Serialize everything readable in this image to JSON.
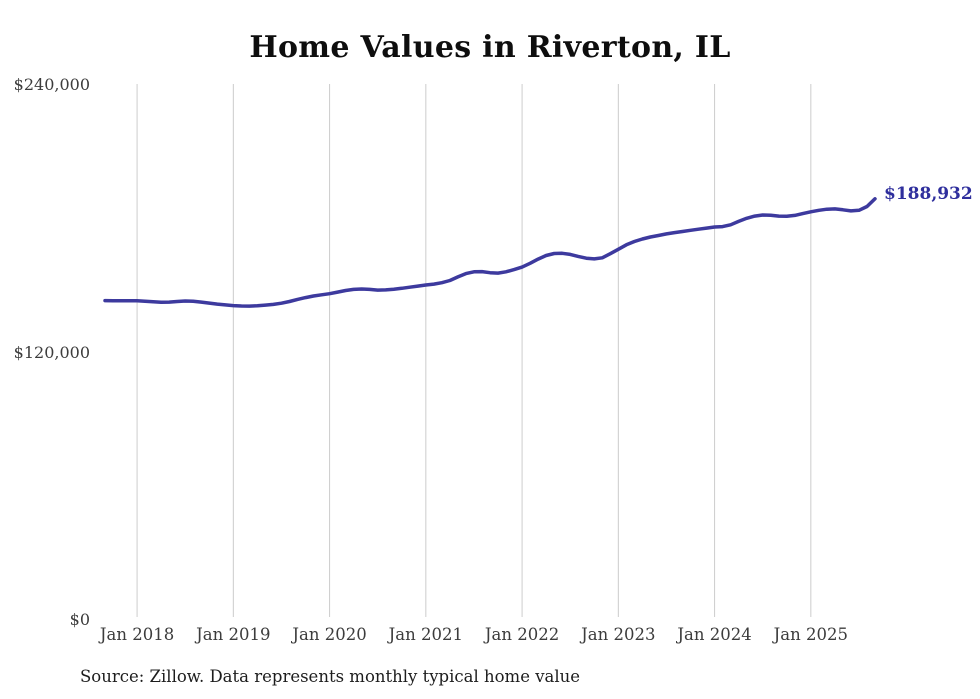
{
  "chart_data": {
    "type": "line",
    "title": "Home Values in Riverton, IL",
    "xlabel": "",
    "ylabel": "",
    "ylim": [
      0,
      240000
    ],
    "grid": "vertical-only",
    "legend": "none",
    "end_label": "$188,932",
    "latest_value": 188932,
    "source": "Source: Zillow. Data represents monthly typical home value",
    "colors": {
      "line": "#3d3a9e",
      "end_label": "#2f2f9d",
      "grid": "#cccccc",
      "axis_text": "#3c3c3c",
      "title_text": "#0e0e0e",
      "background": "#ffffff"
    },
    "y_ticks": [
      {
        "label": "$0",
        "value": 0
      },
      {
        "label": "$120,000",
        "value": 120000
      },
      {
        "label": "$240,000",
        "value": 240000
      }
    ],
    "x_ticks": [
      {
        "label": "Jan 2018",
        "month": "2018-01"
      },
      {
        "label": "Jan 2019",
        "month": "2019-01"
      },
      {
        "label": "Jan 2020",
        "month": "2020-01"
      },
      {
        "label": "Jan 2021",
        "month": "2021-01"
      },
      {
        "label": "Jan 2022",
        "month": "2022-01"
      },
      {
        "label": "Jan 2023",
        "month": "2023-01"
      },
      {
        "label": "Jan 2024",
        "month": "2024-01"
      },
      {
        "label": "Jan 2025",
        "month": "2025-01"
      }
    ],
    "x": [
      "2017-09",
      "2017-10",
      "2017-11",
      "2017-12",
      "2018-01",
      "2018-02",
      "2018-03",
      "2018-04",
      "2018-05",
      "2018-06",
      "2018-07",
      "2018-08",
      "2018-09",
      "2018-10",
      "2018-11",
      "2018-12",
      "2019-01",
      "2019-02",
      "2019-03",
      "2019-04",
      "2019-05",
      "2019-06",
      "2019-07",
      "2019-08",
      "2019-09",
      "2019-10",
      "2019-11",
      "2019-12",
      "2020-01",
      "2020-02",
      "2020-03",
      "2020-04",
      "2020-05",
      "2020-06",
      "2020-07",
      "2020-08",
      "2020-09",
      "2020-10",
      "2020-11",
      "2020-12",
      "2021-01",
      "2021-02",
      "2021-03",
      "2021-04",
      "2021-05",
      "2021-06",
      "2021-07",
      "2021-08",
      "2021-09",
      "2021-10",
      "2021-11",
      "2021-12",
      "2022-01",
      "2022-02",
      "2022-03",
      "2022-04",
      "2022-05",
      "2022-06",
      "2022-07",
      "2022-08",
      "2022-09",
      "2022-10",
      "2022-11",
      "2022-12",
      "2023-01",
      "2023-02",
      "2023-03",
      "2023-04",
      "2023-05",
      "2023-06",
      "2023-07",
      "2023-08",
      "2023-09",
      "2023-10",
      "2023-11",
      "2023-12",
      "2024-01",
      "2024-02",
      "2024-03",
      "2024-04",
      "2024-05",
      "2024-06",
      "2024-07",
      "2024-08",
      "2024-09",
      "2024-10",
      "2024-11",
      "2024-12",
      "2025-01",
      "2025-02",
      "2025-03",
      "2025-04",
      "2025-05",
      "2025-06",
      "2025-07",
      "2025-08",
      "2025-09"
    ],
    "series": [
      {
        "name": "Monthly typical home value",
        "values": [
          143300,
          143250,
          143200,
          143200,
          143200,
          143000,
          142750,
          142500,
          142600,
          142900,
          143100,
          143000,
          142600,
          142150,
          141700,
          141350,
          141050,
          140850,
          140800,
          140950,
          141250,
          141600,
          142100,
          142900,
          143800,
          144650,
          145350,
          145900,
          146400,
          147100,
          147800,
          148300,
          148500,
          148300,
          148000,
          148100,
          148400,
          148800,
          149300,
          149800,
          150300,
          150700,
          151300,
          152300,
          153900,
          155400,
          156200,
          156300,
          155800,
          155600,
          156200,
          157200,
          158300,
          160000,
          161900,
          163500,
          164400,
          164500,
          164000,
          163100,
          162300,
          162000,
          162500,
          164300,
          166300,
          168300,
          169800,
          170900,
          171800,
          172500,
          173200,
          173800,
          174300,
          174800,
          175300,
          175800,
          176300,
          176500,
          177300,
          178800,
          180200,
          181200,
          181700,
          181600,
          181200,
          181100,
          181500,
          182300,
          183100,
          183800,
          184300,
          184400,
          184000,
          183500,
          183800,
          185500,
          188932
        ]
      }
    ]
  }
}
